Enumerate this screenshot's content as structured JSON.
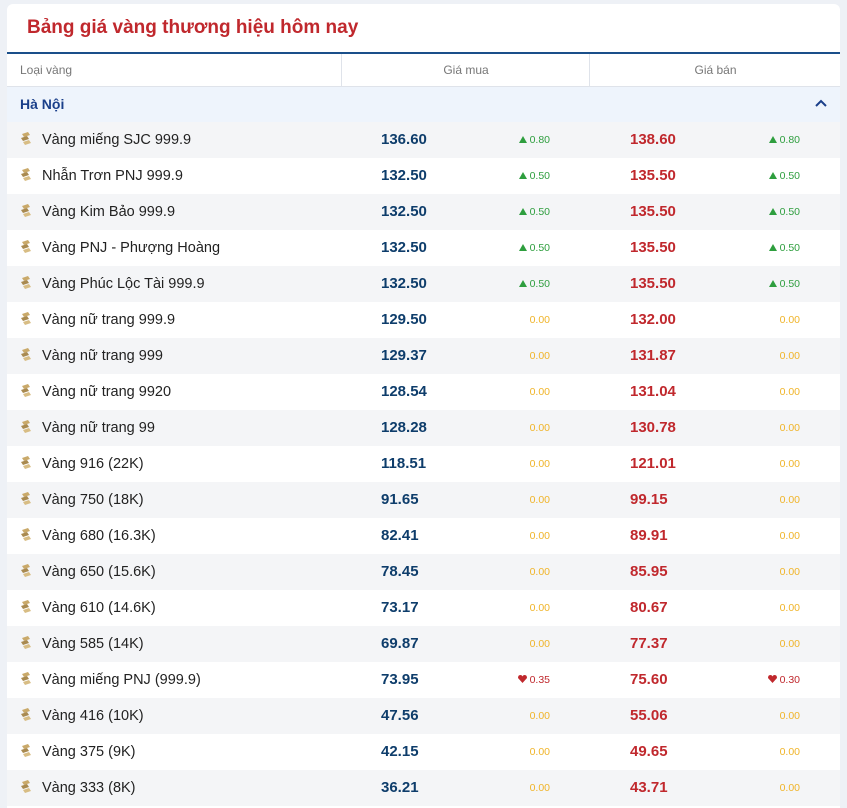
{
  "header": {
    "title": "Bảng giá vàng thương hiệu hôm nay"
  },
  "table": {
    "columns": [
      "Loại vàng",
      "Giá mua",
      "Giá bán"
    ],
    "region": "Hà Nội",
    "rows": [
      {
        "name": "Vàng miếng SJC 999.9",
        "buy": "136.60",
        "buy_change": "0.80",
        "buy_trend": "up",
        "sell": "138.60",
        "sell_change": "0.80",
        "sell_trend": "up"
      },
      {
        "name": "Nhẫn Trơn PNJ 999.9",
        "buy": "132.50",
        "buy_change": "0.50",
        "buy_trend": "up",
        "sell": "135.50",
        "sell_change": "0.50",
        "sell_trend": "up"
      },
      {
        "name": "Vàng Kim Bảo 999.9",
        "buy": "132.50",
        "buy_change": "0.50",
        "buy_trend": "up",
        "sell": "135.50",
        "sell_change": "0.50",
        "sell_trend": "up"
      },
      {
        "name": "Vàng PNJ - Phượng Hoàng",
        "buy": "132.50",
        "buy_change": "0.50",
        "buy_trend": "up",
        "sell": "135.50",
        "sell_change": "0.50",
        "sell_trend": "up"
      },
      {
        "name": "Vàng Phúc Lộc Tài 999.9",
        "buy": "132.50",
        "buy_change": "0.50",
        "buy_trend": "up",
        "sell": "135.50",
        "sell_change": "0.50",
        "sell_trend": "up"
      },
      {
        "name": "Vàng nữ trang 999.9",
        "buy": "129.50",
        "buy_change": "0.00",
        "buy_trend": "flat",
        "sell": "132.00",
        "sell_change": "0.00",
        "sell_trend": "flat"
      },
      {
        "name": "Vàng nữ trang 999",
        "buy": "129.37",
        "buy_change": "0.00",
        "buy_trend": "flat",
        "sell": "131.87",
        "sell_change": "0.00",
        "sell_trend": "flat"
      },
      {
        "name": "Vàng nữ trang 9920",
        "buy": "128.54",
        "buy_change": "0.00",
        "buy_trend": "flat",
        "sell": "131.04",
        "sell_change": "0.00",
        "sell_trend": "flat"
      },
      {
        "name": "Vàng nữ trang 99",
        "buy": "128.28",
        "buy_change": "0.00",
        "buy_trend": "flat",
        "sell": "130.78",
        "sell_change": "0.00",
        "sell_trend": "flat"
      },
      {
        "name": "Vàng 916 (22K)",
        "buy": "118.51",
        "buy_change": "0.00",
        "buy_trend": "flat",
        "sell": "121.01",
        "sell_change": "0.00",
        "sell_trend": "flat"
      },
      {
        "name": "Vàng 750 (18K)",
        "buy": "91.65",
        "buy_change": "0.00",
        "buy_trend": "flat",
        "sell": "99.15",
        "sell_change": "0.00",
        "sell_trend": "flat"
      },
      {
        "name": "Vàng 680 (16.3K)",
        "buy": "82.41",
        "buy_change": "0.00",
        "buy_trend": "flat",
        "sell": "89.91",
        "sell_change": "0.00",
        "sell_trend": "flat"
      },
      {
        "name": "Vàng 650 (15.6K)",
        "buy": "78.45",
        "buy_change": "0.00",
        "buy_trend": "flat",
        "sell": "85.95",
        "sell_change": "0.00",
        "sell_trend": "flat"
      },
      {
        "name": "Vàng 610 (14.6K)",
        "buy": "73.17",
        "buy_change": "0.00",
        "buy_trend": "flat",
        "sell": "80.67",
        "sell_change": "0.00",
        "sell_trend": "flat"
      },
      {
        "name": "Vàng 585 (14K)",
        "buy": "69.87",
        "buy_change": "0.00",
        "buy_trend": "flat",
        "sell": "77.37",
        "sell_change": "0.00",
        "sell_trend": "flat"
      },
      {
        "name": "Vàng miếng PNJ (999.9)",
        "buy": "73.95",
        "buy_change": "0.35",
        "buy_trend": "down",
        "sell": "75.60",
        "sell_change": "0.30",
        "sell_trend": "down"
      },
      {
        "name": "Vàng 416 (10K)",
        "buy": "47.56",
        "buy_change": "0.00",
        "buy_trend": "flat",
        "sell": "55.06",
        "sell_change": "0.00",
        "sell_trend": "flat"
      },
      {
        "name": "Vàng 375 (9K)",
        "buy": "42.15",
        "buy_change": "0.00",
        "buy_trend": "flat",
        "sell": "49.65",
        "sell_change": "0.00",
        "sell_trend": "flat"
      },
      {
        "name": "Vàng 333 (8K)",
        "buy": "36.21",
        "buy_change": "0.00",
        "buy_trend": "flat",
        "sell": "43.71",
        "sell_change": "0.00",
        "sell_trend": "flat"
      }
    ]
  }
}
